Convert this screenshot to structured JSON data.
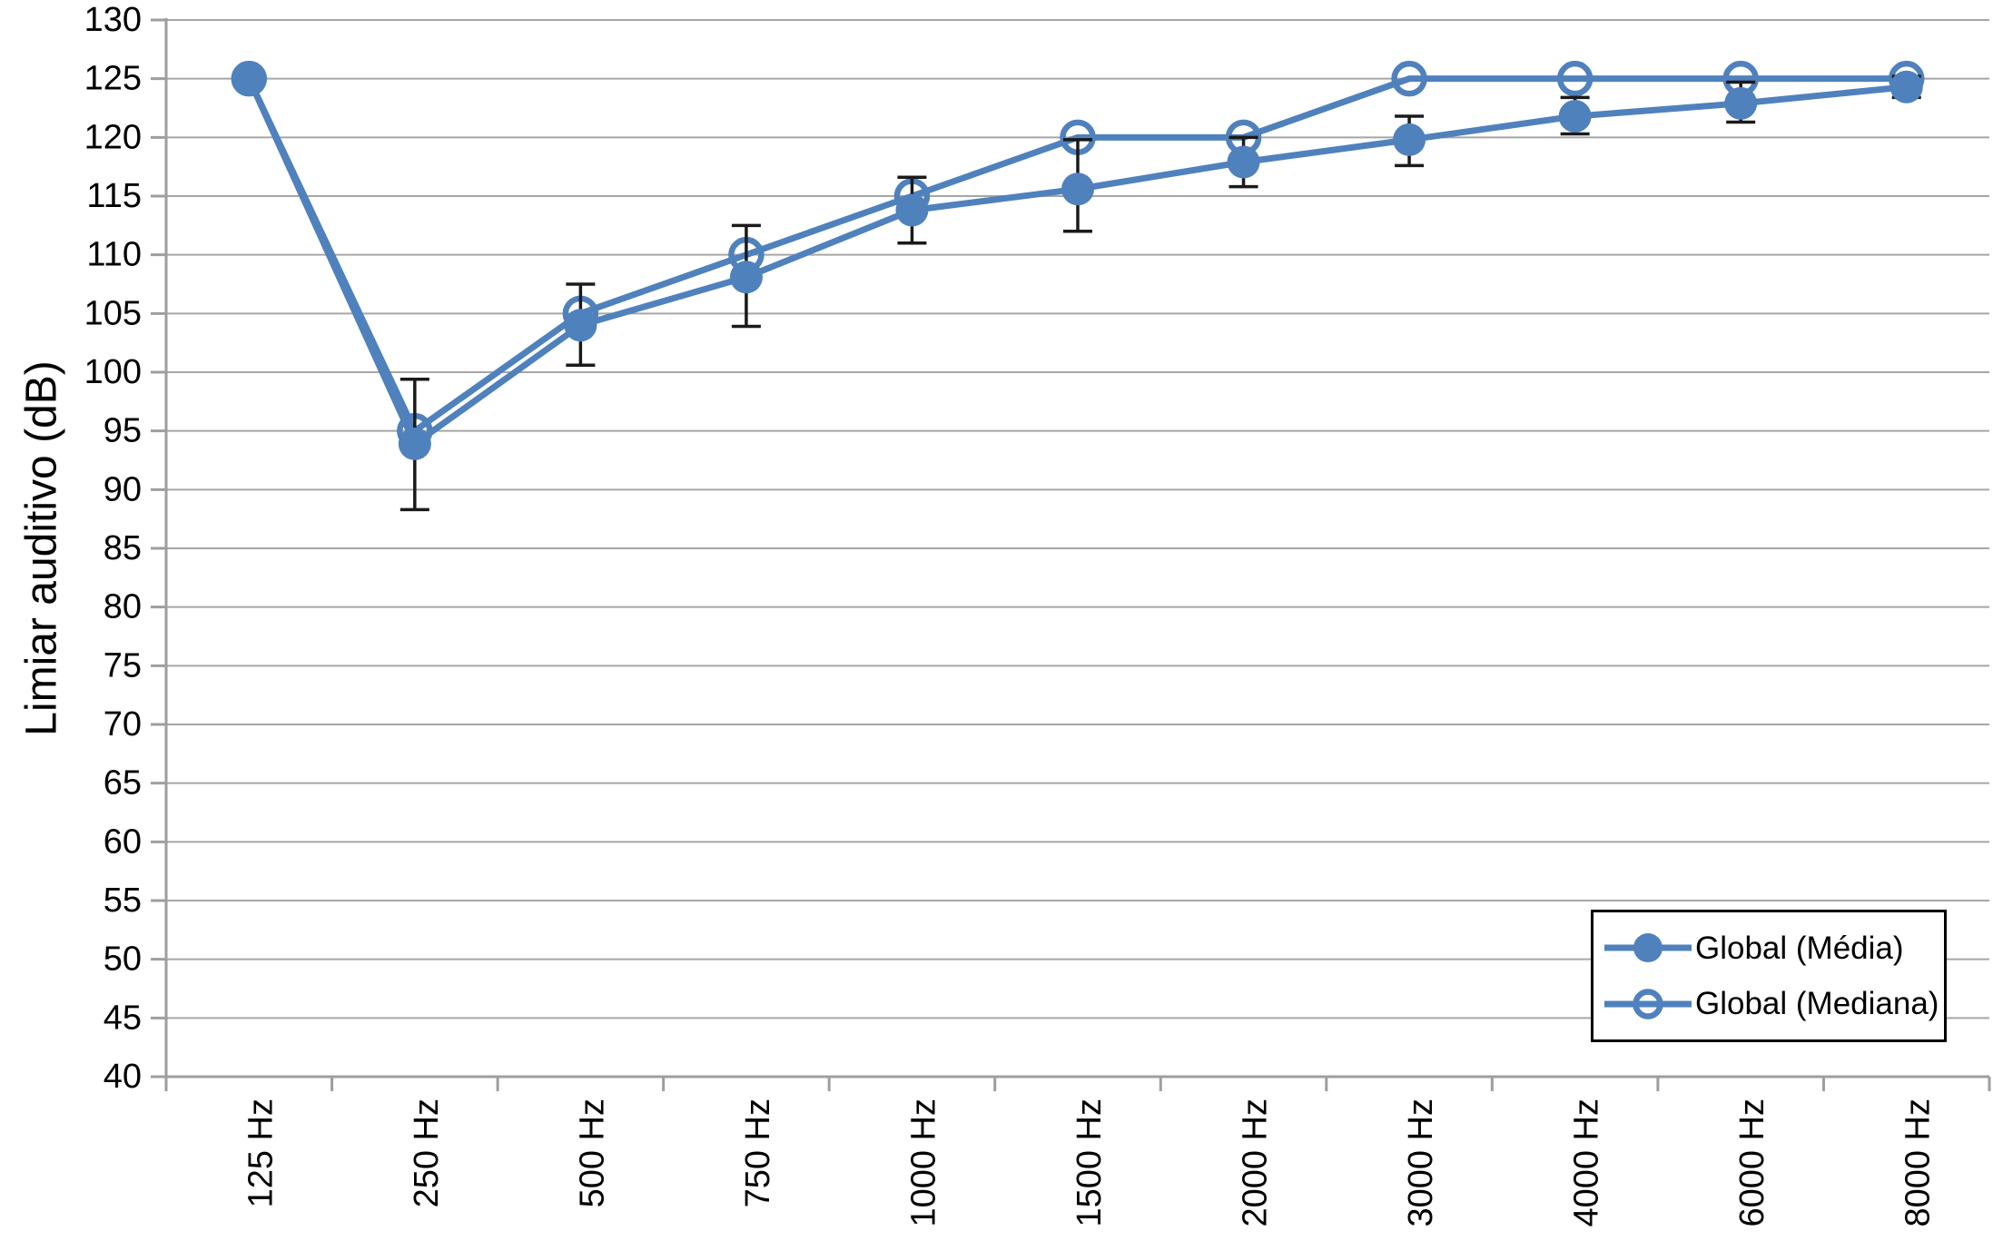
{
  "chart_data": {
    "type": "line",
    "title": "",
    "xlabel": "",
    "ylabel": "Limiar auditivo (dB)",
    "ylim": [
      40,
      130
    ],
    "ytick_step": 5,
    "grid": "horizontal",
    "legend_position": "inside-bottom-right",
    "categories": [
      "125 Hz",
      "250 Hz",
      "500 Hz",
      "750 Hz",
      "1000 Hz",
      "1500 Hz",
      "2000 Hz",
      "3000 Hz",
      "4000 Hz",
      "6000 Hz",
      "8000 Hz"
    ],
    "y_tick_labels": [
      "130",
      "125",
      "120",
      "115",
      "110",
      "105",
      "100",
      "95",
      "90",
      "85",
      "80",
      "75",
      "70",
      "65",
      "60",
      "55",
      "50",
      "45",
      "40"
    ],
    "series": [
      {
        "name": "Global (Média)",
        "marker": "filled-circle",
        "values": [
          125,
          93.9,
          104.0,
          108.1,
          113.8,
          115.6,
          117.9,
          119.8,
          121.8,
          122.9,
          124.3
        ],
        "error_low": [
          125,
          88.3,
          100.6,
          103.9,
          111.0,
          112.0,
          115.8,
          117.6,
          120.3,
          121.3,
          123.4
        ],
        "error_high": [
          125,
          99.4,
          107.5,
          112.5,
          116.6,
          119.8,
          120.0,
          121.8,
          123.4,
          124.7,
          125.2
        ]
      },
      {
        "name": "Global (Mediana)",
        "marker": "open-circle",
        "values": [
          125,
          95,
          105,
          110,
          115,
          120,
          120,
          125,
          125,
          125,
          125
        ]
      }
    ],
    "colors": {
      "series": "#4F81BD",
      "gridline": "#A6A6A6",
      "axis": "#9E9E9E",
      "error_bar": "#1A1A1A",
      "text": "#000000",
      "legend_border": "#000000",
      "background": "#FFFFFF"
    }
  },
  "legend": {
    "items": [
      {
        "label": "Global (Média)"
      },
      {
        "label": "Global (Mediana)"
      }
    ]
  }
}
